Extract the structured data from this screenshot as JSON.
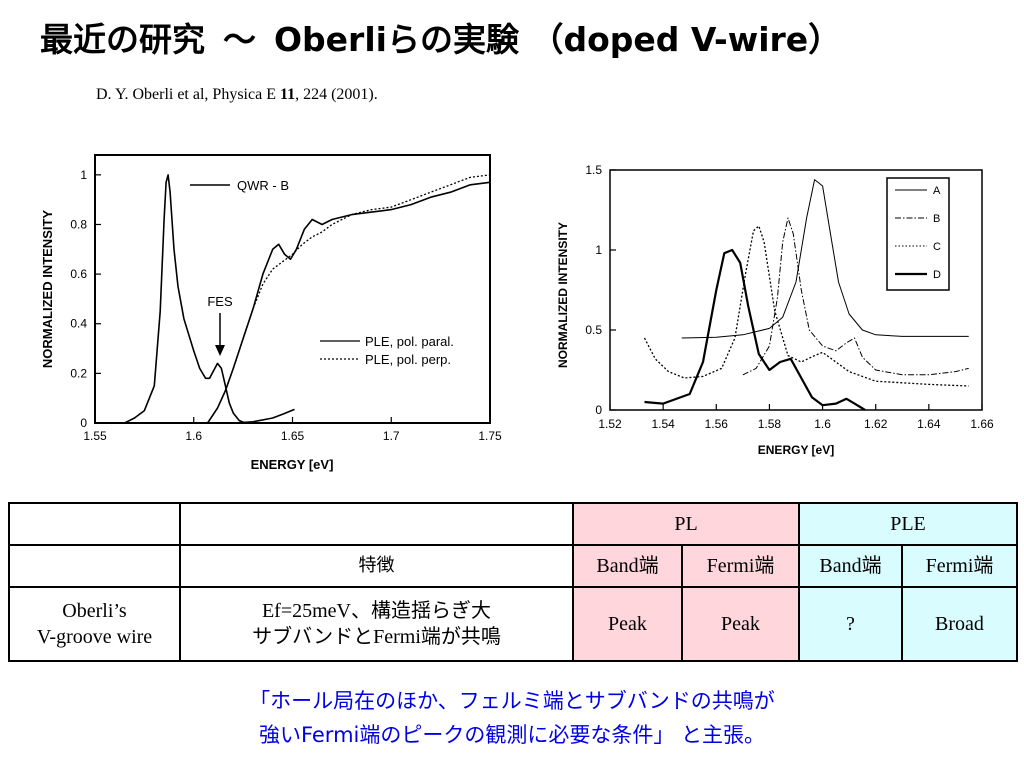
{
  "slide": {
    "title_main": "最近の研究",
    "title_sep": "～",
    "title_sub": "Oberliらの実験",
    "title_paren": "（doped V-wire）",
    "citation_pre": "D. Y. Oberli et al, Physica E ",
    "citation_vol": "11",
    "citation_post": ", 224 (2001)."
  },
  "chart_data": [
    {
      "type": "line",
      "xlabel": "ENERGY [eV]",
      "ylabel": "NORMALIZED INTENSITY",
      "xlim": [
        1.55,
        1.75
      ],
      "ylim": [
        0,
        1.08
      ],
      "x_ticks": [
        "1.55",
        "1.6",
        "1.65",
        "1.7",
        "1.75"
      ],
      "y_ticks": [
        "0",
        "0.2",
        "0.4",
        "0.6",
        "0.8",
        "1"
      ],
      "legend_top": "QWR - B",
      "annotation": "FES",
      "series": [
        {
          "name": "QWR - B",
          "style": "solid",
          "x": [
            1.565,
            1.57,
            1.575,
            1.58,
            1.583,
            1.585,
            1.586,
            1.587,
            1.588,
            1.59,
            1.592,
            1.595,
            1.6,
            1.603,
            1.606,
            1.608,
            1.61,
            1.612,
            1.614,
            1.616,
            1.618,
            1.62,
            1.623,
            1.626
          ],
          "y": [
            0.0,
            0.02,
            0.05,
            0.15,
            0.45,
            0.82,
            0.97,
            1.0,
            0.93,
            0.7,
            0.55,
            0.42,
            0.29,
            0.22,
            0.18,
            0.18,
            0.21,
            0.24,
            0.22,
            0.15,
            0.08,
            0.04,
            0.01,
            0.0
          ]
        },
        {
          "name": "",
          "style": "solid",
          "x": [
            1.62,
            1.63,
            1.64,
            1.645,
            1.651
          ],
          "y": [
            0.0,
            0.005,
            0.02,
            0.035,
            0.055
          ]
        },
        {
          "name": "PLE, pol. paral.",
          "style": "solid",
          "x": [
            1.607,
            1.612,
            1.616,
            1.62,
            1.625,
            1.63,
            1.635,
            1.64,
            1.643,
            1.646,
            1.649,
            1.652,
            1.656,
            1.66,
            1.665,
            1.67,
            1.68,
            1.69,
            1.7,
            1.71,
            1.72,
            1.73,
            1.74,
            1.75
          ],
          "y": [
            0.0,
            0.06,
            0.13,
            0.22,
            0.34,
            0.46,
            0.6,
            0.7,
            0.72,
            0.68,
            0.66,
            0.7,
            0.78,
            0.82,
            0.8,
            0.82,
            0.84,
            0.85,
            0.86,
            0.88,
            0.91,
            0.93,
            0.96,
            0.97
          ]
        },
        {
          "name": "PLE, pol. perp.",
          "style": "dotted",
          "x": [
            1.607,
            1.612,
            1.616,
            1.62,
            1.625,
            1.63,
            1.635,
            1.64,
            1.645,
            1.65,
            1.655,
            1.66,
            1.665,
            1.67,
            1.675,
            1.68,
            1.69,
            1.7,
            1.71,
            1.72,
            1.73,
            1.74,
            1.75
          ],
          "y": [
            0.0,
            0.06,
            0.13,
            0.22,
            0.34,
            0.46,
            0.56,
            0.62,
            0.65,
            0.68,
            0.72,
            0.75,
            0.77,
            0.8,
            0.82,
            0.84,
            0.86,
            0.87,
            0.9,
            0.93,
            0.96,
            0.99,
            1.0
          ]
        }
      ]
    },
    {
      "type": "line",
      "xlabel": "ENERGY [eV]",
      "ylabel": "NORMALIZED INTENSITY",
      "xlim": [
        1.52,
        1.66
      ],
      "ylim": [
        0,
        1.5
      ],
      "x_ticks": [
        "1.52",
        "1.54",
        "1.56",
        "1.58",
        "1.6",
        "1.62",
        "1.64",
        "1.66"
      ],
      "y_ticks": [
        "0",
        "0.5",
        "1",
        "1.5"
      ],
      "legend_position": "top-right",
      "series": [
        {
          "name": "A",
          "style": "solid-thin",
          "x": [
            1.547,
            1.56,
            1.57,
            1.58,
            1.585,
            1.59,
            1.594,
            1.597,
            1.6,
            1.603,
            1.606,
            1.61,
            1.615,
            1.62,
            1.63,
            1.64,
            1.655
          ],
          "y": [
            0.45,
            0.455,
            0.47,
            0.51,
            0.58,
            0.8,
            1.2,
            1.44,
            1.4,
            1.1,
            0.8,
            0.6,
            0.5,
            0.47,
            0.46,
            0.46,
            0.46
          ]
        },
        {
          "name": "B",
          "style": "dashdot",
          "x": [
            1.57,
            1.575,
            1.58,
            1.583,
            1.585,
            1.587,
            1.589,
            1.592,
            1.595,
            1.6,
            1.605,
            1.609,
            1.612,
            1.615,
            1.62,
            1.63,
            1.64,
            1.65,
            1.655
          ],
          "y": [
            0.22,
            0.26,
            0.4,
            0.7,
            1.05,
            1.2,
            1.1,
            0.75,
            0.5,
            0.4,
            0.37,
            0.42,
            0.45,
            0.33,
            0.25,
            0.22,
            0.22,
            0.24,
            0.26
          ]
        },
        {
          "name": "C",
          "style": "dotted",
          "x": [
            1.533,
            1.537,
            1.542,
            1.548,
            1.555,
            1.562,
            1.567,
            1.571,
            1.574,
            1.576,
            1.578,
            1.582,
            1.587,
            1.592,
            1.597,
            1.6,
            1.605,
            1.61,
            1.62,
            1.63,
            1.64,
            1.655
          ],
          "y": [
            0.45,
            0.32,
            0.24,
            0.2,
            0.21,
            0.26,
            0.45,
            0.85,
            1.12,
            1.15,
            1.05,
            0.62,
            0.34,
            0.3,
            0.34,
            0.36,
            0.3,
            0.24,
            0.18,
            0.17,
            0.16,
            0.15
          ]
        },
        {
          "name": "D",
          "style": "solid-thick",
          "x": [
            1.533,
            1.54,
            1.55,
            1.555,
            1.56,
            1.563,
            1.566,
            1.569,
            1.572,
            1.576,
            1.58,
            1.584,
            1.588,
            1.592,
            1.596,
            1.6,
            1.605,
            1.609,
            1.612,
            1.616
          ],
          "y": [
            0.05,
            0.04,
            0.1,
            0.3,
            0.75,
            0.98,
            1.0,
            0.92,
            0.65,
            0.35,
            0.25,
            0.3,
            0.32,
            0.2,
            0.08,
            0.03,
            0.04,
            0.07,
            0.04,
            0.0
          ]
        }
      ]
    }
  ],
  "table": {
    "header_pl": "PL",
    "header_ple": "PLE",
    "feature_header": "特徴",
    "band": "Band端",
    "fermi": "Fermi端",
    "row_label_1": "Oberli’s",
    "row_label_2": "V-groove wire",
    "feature_1": "Ef=25meV、構造揺らぎ大",
    "feature_2": "サブバンドとFermi端が共鳴",
    "pl_band": "Peak",
    "pl_fermi": "Peak",
    "ple_band": "?",
    "ple_fermi": "Broad"
  },
  "conclusion": {
    "line1": "「ホール局在のほか、フェルミ端とサブバンドの共鳴が",
    "line2": "強いFermi端のピークの観測に必要な条件」 と主張。"
  }
}
